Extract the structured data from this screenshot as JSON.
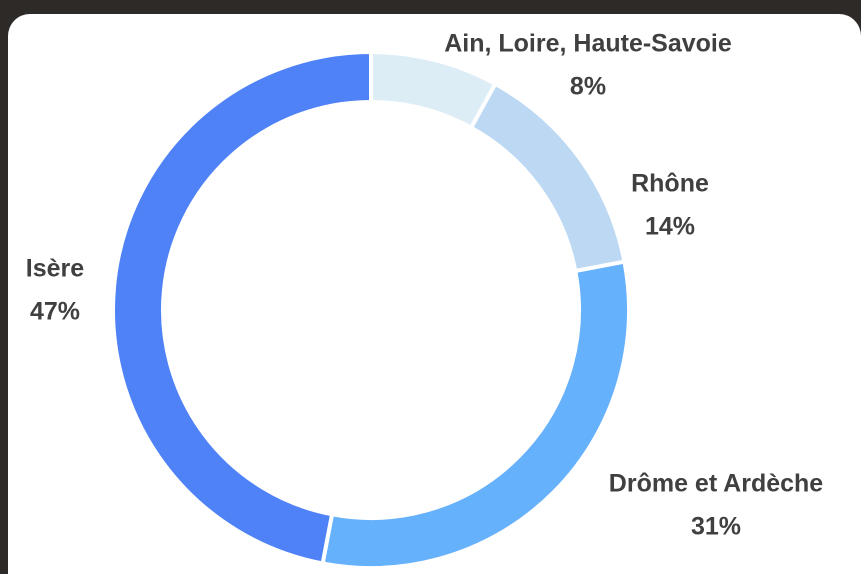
{
  "chart_data": {
    "type": "pie",
    "categories": [
      "Ain, Loire, Haute-Savoie",
      "Rhône",
      "Drôme et Ardèche",
      "Isère"
    ],
    "values": [
      8,
      14,
      31,
      47
    ],
    "value_labels": [
      "8%",
      "14%",
      "31%",
      "47%"
    ],
    "colors": [
      "#ddedf5",
      "#bcd8f3",
      "#66b1fc",
      "#4f82f7"
    ]
  }
}
